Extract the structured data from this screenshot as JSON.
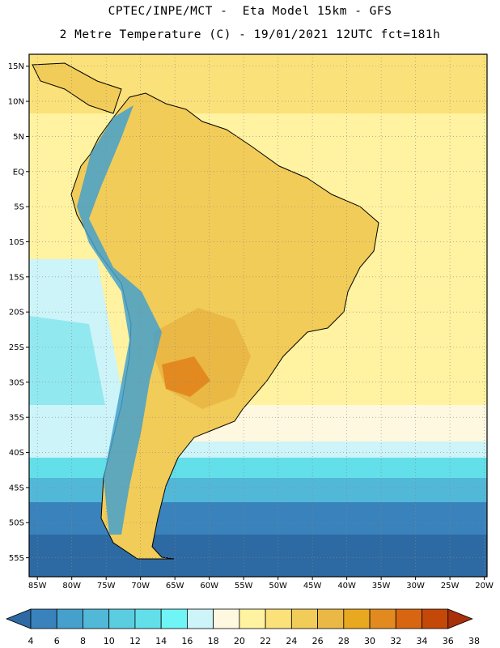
{
  "title_line1": "CPTEC/INPE/MCT -  Eta Model 15km - GFS",
  "title_line2": "2 Metre Temperature (C) - 19/01/2021 12UTC fct=181h",
  "lat_labels": [
    "15N",
    "10N",
    "5N",
    "EQ",
    "5S",
    "10S",
    "15S",
    "20S",
    "25S",
    "30S",
    "35S",
    "40S",
    "45S",
    "50S",
    "55S"
  ],
  "lon_labels": [
    "85W",
    "80W",
    "75W",
    "70W",
    "65W",
    "60W",
    "55W",
    "50W",
    "45W",
    "40W",
    "35W",
    "30W",
    "25W",
    "20W"
  ],
  "colorbar": {
    "levels": [
      "4",
      "6",
      "8",
      "10",
      "12",
      "14",
      "16",
      "18",
      "20",
      "22",
      "24",
      "26",
      "28",
      "30",
      "32",
      "34",
      "36",
      "38"
    ],
    "colors": [
      "#2d6aa3",
      "#3a82bb",
      "#45a0cc",
      "#52b8d8",
      "#5ccde0",
      "#62dfe8",
      "#6ff5f5",
      "#cdf4f8",
      "#fff8e0",
      "#fff2a0",
      "#fbe17a",
      "#f2cc58",
      "#eab845",
      "#e8a820",
      "#e28a20",
      "#d86610",
      "#c44808",
      "#a8300a"
    ]
  },
  "map_colors": {
    "ocean_north": "#fbe17a",
    "ocean_tropic": "#fff2a0",
    "ocean_cool": "#fff8e0",
    "ocean_pale": "#cdf4f8",
    "ocean_cyan": "#62dfe8",
    "ocean_teal": "#52b8d8",
    "ocean_blue": "#3a82bb",
    "ocean_deep": "#2d6aa3",
    "land_warm": "#f2cc58",
    "land_hot": "#eab845",
    "land_hotter": "#e28a20",
    "andes": "#45a0cc"
  }
}
